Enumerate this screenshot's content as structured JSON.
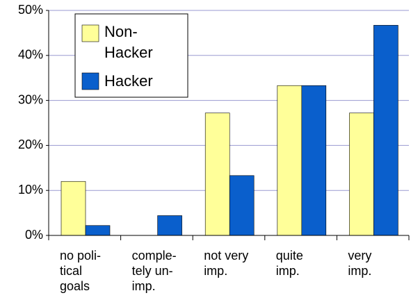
{
  "chart_data": {
    "type": "bar",
    "categories": [
      "no poli-\ntical\ngoals",
      "comple-\ntely un-\nimp.",
      "not very\nimp.",
      "quite\nimp.",
      "very\nimp."
    ],
    "series": [
      {
        "name": "Non-\nHacker",
        "color": "#ffff99",
        "values": [
          12,
          0,
          27.2,
          33.3,
          27.2
        ]
      },
      {
        "name": "Hacker",
        "color": "#0a5fcc",
        "values": [
          2.2,
          4.4,
          13.3,
          33.3,
          46.7
        ]
      }
    ],
    "ylim": [
      0,
      50
    ],
    "yticks": [
      {
        "value": 0,
        "label": "0%"
      },
      {
        "value": 10,
        "label": "10%"
      },
      {
        "value": 20,
        "label": "20%"
      },
      {
        "value": 30,
        "label": "30%"
      },
      {
        "value": 40,
        "label": "40%"
      },
      {
        "value": 50,
        "label": "50%"
      }
    ],
    "grid": true,
    "legend": "upper-left"
  }
}
